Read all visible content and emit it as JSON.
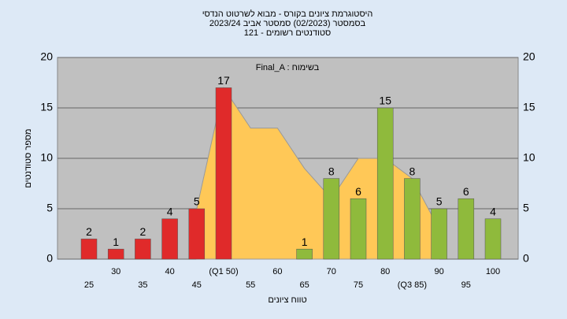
{
  "chart_data": {
    "type": "bar",
    "title": "היסטוגרמת ציונים בקורס - מבוא לשרטוט הנדסי",
    "subtitle": "בסמסטר  (02/2023)  סמסטר אביב 2023/24",
    "subtitle2": "סטודנטים רשומים - 121",
    "annotation": "Final_A : בשימוח",
    "ylabel": "מספר סטודנטים",
    "xlabel": "טווח ציונים",
    "categories": [
      "25",
      "30",
      "35",
      "40",
      "45",
      "(Q1 50)",
      "55",
      "60",
      "65",
      "70",
      "75",
      "80",
      "(Q3 85)",
      "90",
      "95",
      "100"
    ],
    "values": [
      2,
      1,
      2,
      4,
      5,
      17,
      0,
      0,
      1,
      8,
      6,
      15,
      8,
      5,
      6,
      4
    ],
    "colors": [
      "#e02a2a",
      "#e02a2a",
      "#e02a2a",
      "#e02a2a",
      "#e02a2a",
      "#e02a2a",
      "#e02a2a",
      "#e02a2a",
      "#8fba3c",
      "#8fba3c",
      "#8fba3c",
      "#8fba3c",
      "#8fba3c",
      "#8fba3c",
      "#8fba3c",
      "#8fba3c"
    ],
    "area_values": [
      null,
      null,
      null,
      null,
      5,
      17,
      13,
      13,
      9,
      6,
      10,
      10,
      8,
      3,
      null,
      null
    ],
    "area_color": "#ffc857",
    "ylim": [
      0,
      20
    ],
    "yticks": [
      0,
      5,
      10,
      15,
      20
    ],
    "grid": true
  }
}
